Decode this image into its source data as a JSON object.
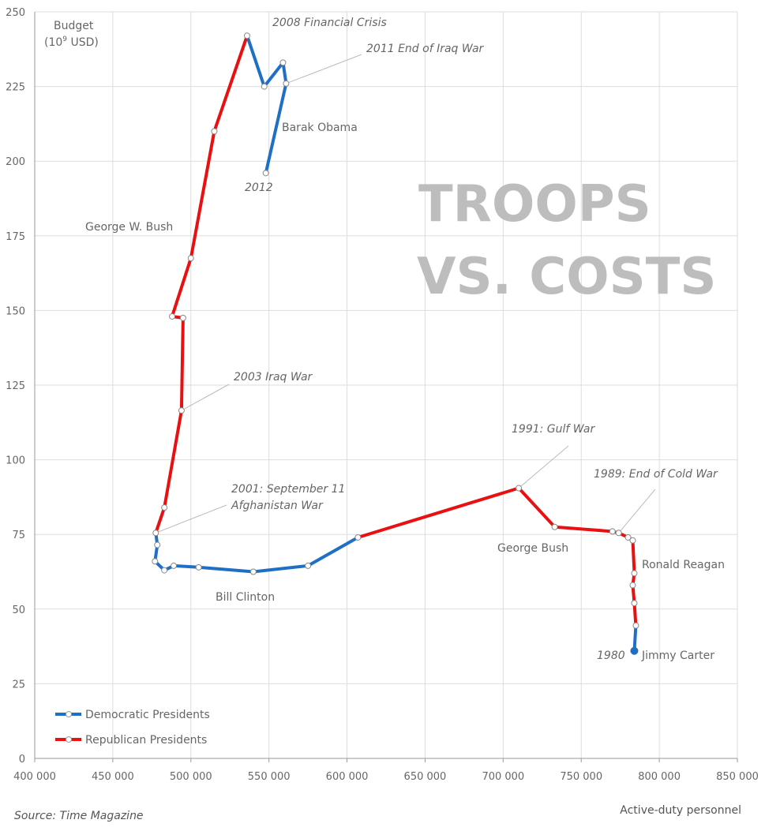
{
  "chart_data": {
    "type": "line",
    "title": "TROOPS VS. COSTS",
    "title_lines": [
      "TROOPS",
      "VS. COSTS"
    ],
    "xlabel": "Active-duty personnel",
    "ylabel_lines": [
      "Budget",
      "(10",
      "9",
      " USD)"
    ],
    "source": "Source: Time Magazine",
    "xlim": [
      400000,
      850000
    ],
    "ylim": [
      0,
      250
    ],
    "xticks": [
      400000,
      450000,
      500000,
      550000,
      600000,
      650000,
      700000,
      750000,
      800000,
      850000
    ],
    "xtick_labels": [
      "400 000",
      "450 000",
      "500 000",
      "550 000",
      "600 000",
      "650 000",
      "700 000",
      "750 000",
      "800 000",
      "850 000"
    ],
    "yticks": [
      0,
      25,
      50,
      75,
      100,
      125,
      150,
      175,
      200,
      225,
      250
    ],
    "ytick_labels": [
      "0",
      "25",
      "50",
      "75",
      "100",
      "125",
      "150",
      "175",
      "200",
      "225",
      "250"
    ],
    "grid": true,
    "legend_position": "bottom-left",
    "colors": {
      "democratic": "#1f6fc4",
      "republican": "#e81010",
      "grid": "#dddddd",
      "leader": "#bbbbbb"
    },
    "series": [
      {
        "name": "Democratic Presidents",
        "color": "#1f6fc4",
        "president": "Jimmy Carter",
        "points": [
          [
            784000,
            36
          ],
          [
            785000,
            44.5
          ]
        ]
      },
      {
        "name": "Republican Presidents",
        "color": "#e81010",
        "president": "Ronald Reagan",
        "points": [
          [
            785000,
            44.5
          ],
          [
            784000,
            52
          ],
          [
            783000,
            58
          ],
          [
            784000,
            62
          ],
          [
            783000,
            73
          ],
          [
            780000,
            74
          ],
          [
            774000,
            75.5
          ],
          [
            770000,
            76
          ]
        ]
      },
      {
        "name": "Republican Presidents",
        "color": "#e81010",
        "president": "George Bush",
        "points": [
          [
            770000,
            76
          ],
          [
            733000,
            77.5
          ],
          [
            710000,
            90.5
          ],
          [
            607000,
            74
          ]
        ]
      },
      {
        "name": "Democratic Presidents",
        "color": "#1f6fc4",
        "president": "Bill Clinton",
        "points": [
          [
            607000,
            74
          ],
          [
            575000,
            64.5
          ],
          [
            540000,
            62.5
          ],
          [
            505000,
            64
          ],
          [
            489000,
            64.5
          ],
          [
            483000,
            63
          ],
          [
            477000,
            66
          ],
          [
            478500,
            71.5
          ],
          [
            477500,
            75.5
          ]
        ]
      },
      {
        "name": "Republican Presidents",
        "color": "#e81010",
        "president": "George W. Bush",
        "points": [
          [
            477500,
            75.5
          ],
          [
            483000,
            84
          ],
          [
            494000,
            116.5
          ],
          [
            495000,
            147.5
          ],
          [
            488000,
            148
          ],
          [
            500000,
            167.5
          ],
          [
            515000,
            210
          ],
          [
            536000,
            242
          ]
        ]
      },
      {
        "name": "Democratic Presidents",
        "color": "#1f6fc4",
        "president": "Barak Obama",
        "points": [
          [
            536000,
            242
          ],
          [
            547000,
            225
          ],
          [
            559000,
            233
          ],
          [
            561000,
            226
          ],
          [
            548000,
            196
          ]
        ]
      }
    ],
    "president_labels": [
      "Jimmy Carter",
      "Ronald Reagan",
      "George Bush",
      "Bill Clinton",
      "George W. Bush",
      "Barak Obama"
    ],
    "annotations": [
      {
        "text": "2008 Financial Crisis",
        "x": 536000,
        "y": 242,
        "leader": false
      },
      {
        "text": "2011 End of Iraq War",
        "x": 561000,
        "y": 226,
        "leader": true
      },
      {
        "text": "2012",
        "x": 548000,
        "y": 196,
        "leader": false
      },
      {
        "text": "2003 Iraq War",
        "x": 494000,
        "y": 116.5,
        "leader": true
      },
      {
        "text": "2001: September 11",
        "x": 477500,
        "y": 75.5,
        "leader": true
      },
      {
        "text": "Afghanistan War",
        "x": 477500,
        "y": 75.5,
        "leader": false
      },
      {
        "text": "1991: Gulf War",
        "x": 710000,
        "y": 90.5,
        "leader": true
      },
      {
        "text": "1989: End of Cold War",
        "x": 774000,
        "y": 75.5,
        "leader": true
      },
      {
        "text": "1980",
        "x": 784000,
        "y": 36,
        "leader": false
      }
    ]
  }
}
